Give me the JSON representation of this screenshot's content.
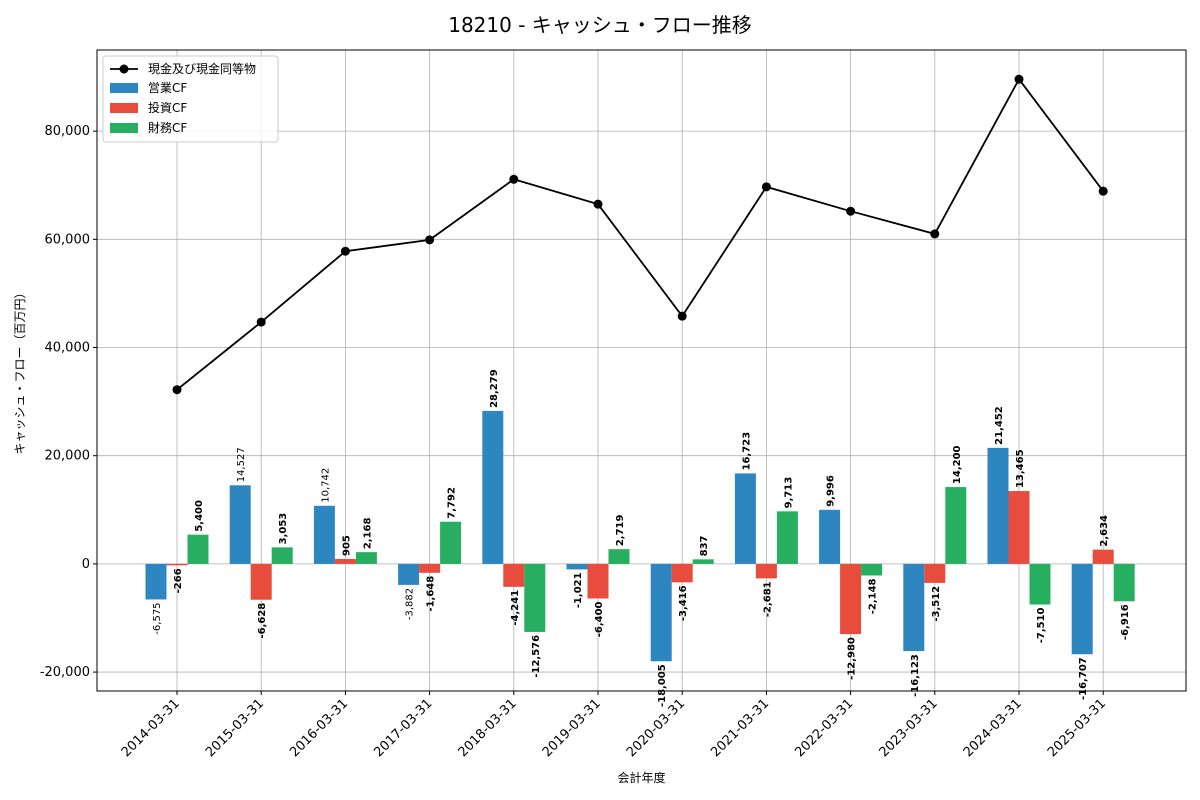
{
  "chart_data": {
    "type": "bar",
    "title": "18210 - キャッシュ・フロー推移",
    "xlabel": "会計年度",
    "ylabel": "キャッシュ・フロー（百万円）",
    "ylim": [
      -23500,
      95000
    ],
    "yticks": [
      -20000,
      0,
      20000,
      40000,
      60000,
      80000
    ],
    "ytick_labels": [
      "-20,000",
      "0",
      "20,000",
      "40,000",
      "60,000",
      "80,000"
    ],
    "grid": true,
    "legend_position": "top-left",
    "categories": [
      "2014-03-31",
      "2015-03-31",
      "2016-03-31",
      "2017-03-31",
      "2018-03-31",
      "2019-03-31",
      "2020-03-31",
      "2021-03-31",
      "2022-03-31",
      "2023-03-31",
      "2024-03-31",
      "2025-03-31"
    ],
    "line_series": {
      "name": "現金及び現金同等物",
      "color": "#000000",
      "values": [
        32200,
        44700,
        57800,
        59900,
        71100,
        66500,
        45800,
        69700,
        65200,
        61000,
        89600,
        68900
      ]
    },
    "series": [
      {
        "name": "営業CF",
        "color": "#2e86c1",
        "values": [
          -6575,
          14527,
          10742,
          -3882,
          28279,
          -1021,
          -18005,
          16723,
          9996,
          -16123,
          21452,
          -16707
        ],
        "labels": [
          "-6,575",
          "14,527",
          "10,742",
          "-3,882",
          "28,279",
          "-1,021",
          "-18,005",
          "16,723",
          "9,996",
          "-16,123",
          "21,452",
          "-16,707"
        ]
      },
      {
        "name": "投資CF",
        "color": "#e74c3c",
        "values": [
          -266,
          -6628,
          905,
          -1648,
          -4241,
          -6400,
          -3416,
          -2681,
          -12980,
          -3512,
          13465,
          2634
        ],
        "labels": [
          "-266",
          "-6,628",
          "905",
          "-1,648",
          "-4,241",
          "-6,400",
          "-3,416",
          "-2,681",
          "-12,980",
          "-3,512",
          "13,465",
          "2,634"
        ]
      },
      {
        "name": "財務CF",
        "color": "#27ae60",
        "values": [
          5400,
          3053,
          2168,
          7792,
          -12576,
          2719,
          837,
          9713,
          -2148,
          14200,
          -7510,
          -6916
        ],
        "labels": [
          "5,400",
          "3,053",
          "2,168",
          "7,792",
          "-12,576",
          "2,719",
          "837",
          "9,713",
          "-2,148",
          "14,200",
          "-7,510",
          "-6,916"
        ]
      }
    ]
  }
}
